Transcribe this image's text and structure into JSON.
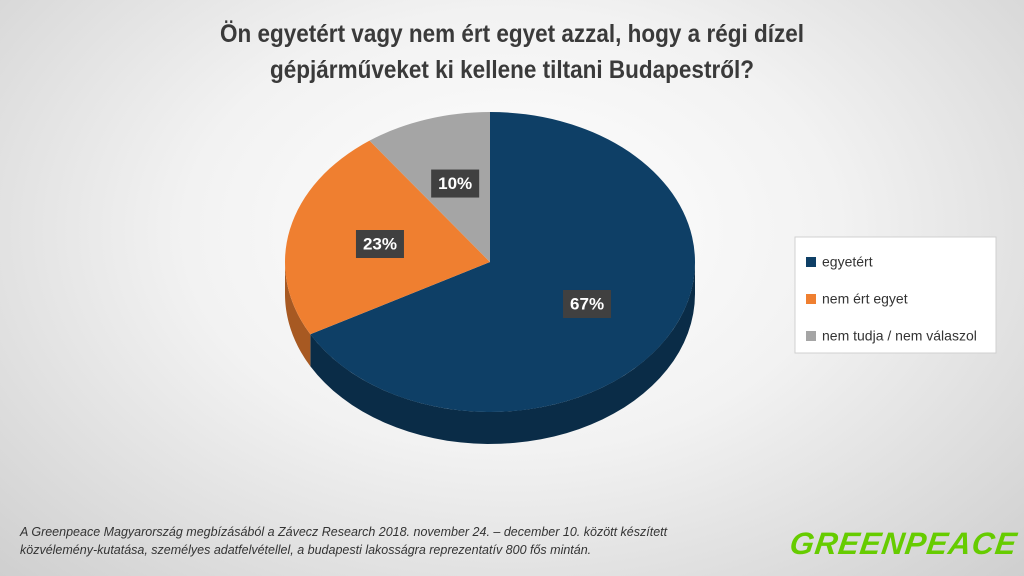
{
  "chart_data": {
    "type": "pie",
    "title": "Ön egyetért vagy nem ért egyet azzal, hogy a régi dízel\ngépjárműveket ki kellene tiltani Budapestről?",
    "categories": [
      "egyetért",
      "nem ért egyet",
      "nem tudja / nem válaszol"
    ],
    "values": [
      67,
      23,
      10
    ],
    "value_labels": [
      "67%",
      "23%",
      "10%"
    ],
    "colors": [
      "#0e3f66",
      "#ef7f30",
      "#a5a5a5"
    ],
    "legend": "right",
    "source": "A Greenpeace Magyarország megbízásából a Závecz Research 2018. november 24. – december 10. között készített\nközvélemény-kutatása, személyes adatfelvétellel, a budapesti lakosságra reprezentatív 800 fős mintán.",
    "logo": "GREENPEACE"
  }
}
